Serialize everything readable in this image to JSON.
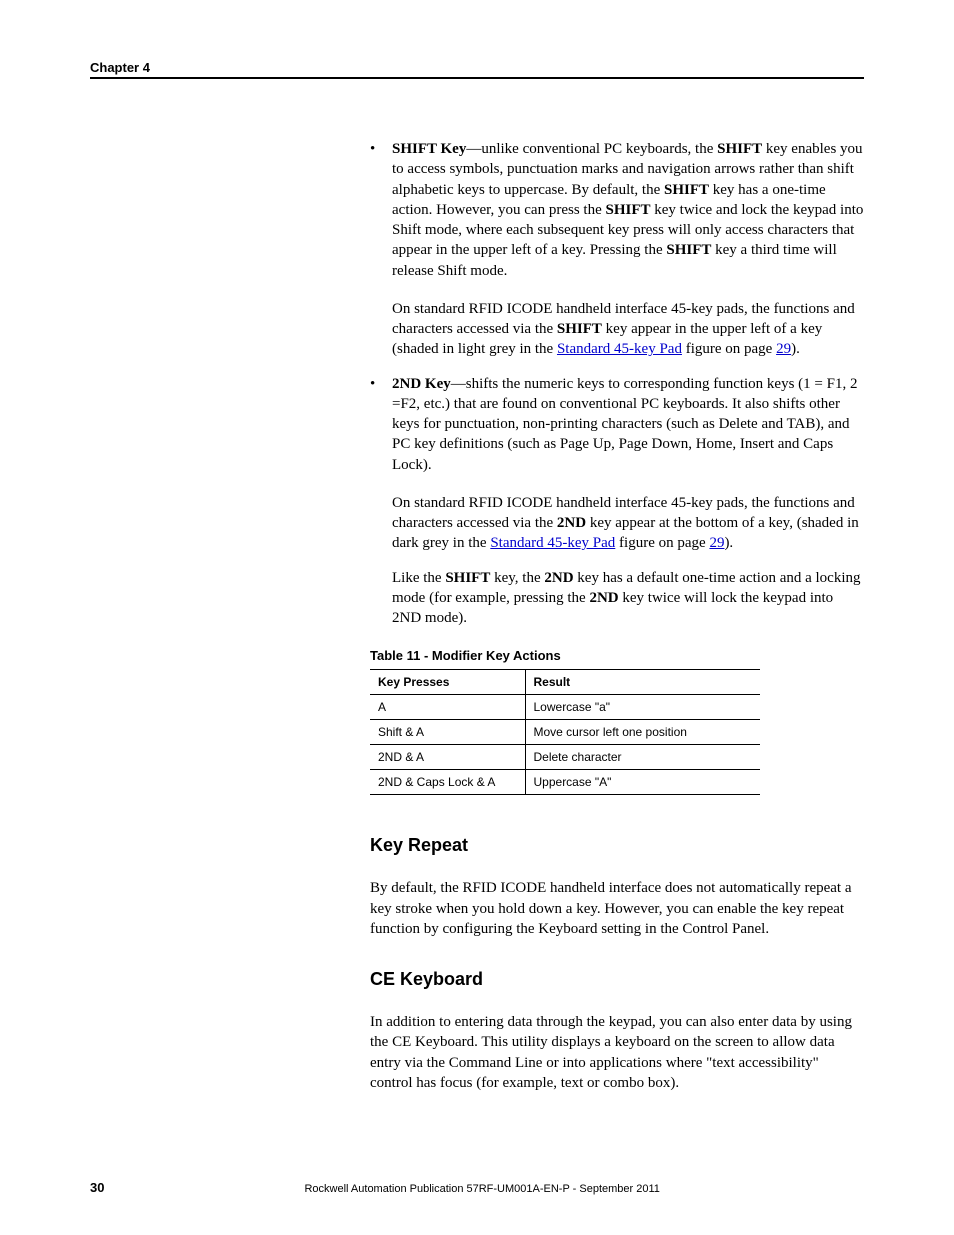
{
  "header": {
    "chapter": "Chapter 4"
  },
  "bullets": [
    {
      "lead_bold": "SHIFT Key",
      "lead_text": "—unlike conventional PC keyboards, the ",
      "b1": "SHIFT",
      "t1": " key enables you to access symbols, punctuation marks and navigation arrows rather than shift alphabetic keys to uppercase. By default, the ",
      "b2": "SHIFT",
      "t2": " key has a one-time action. However, you can press the ",
      "b3": "SHIFT",
      "t3": " key twice and lock the keypad into Shift mode, where each subsequent key press will only access characters that appear in the upper left of a key. Pressing the ",
      "b4": "SHIFT",
      "t4": " key a third time will release Shift mode.",
      "followups": [
        {
          "pre": "On standard RFID ICODE handheld interface 45-key pads, the functions and characters accessed via the ",
          "bold": "SHIFT",
          "mid": " key appear in the upper left of a key (shaded in light grey in the ",
          "link": "Standard 45-key Pad",
          "mid2": " figure on page ",
          "link2": "29",
          "tail": ")."
        }
      ]
    },
    {
      "lead_bold": "2ND Key",
      "lead_text": "—shifts the numeric keys to corresponding function keys (1 = F1, 2 =F2, etc.) that are found on conventional PC keyboards. It also shifts other keys for punctuation, non-printing characters (such as Delete and TAB), and PC key definitions (such as Page Up, Page Down, Home, Insert and Caps Lock).",
      "followups": [
        {
          "pre": "On standard RFID ICODE handheld interface 45-key pads, the functions and characters accessed via the ",
          "bold": "2ND",
          "mid": " key appear at the bottom of a key, (shaded in dark grey in the ",
          "link": "Standard 45-key Pad",
          "mid2": " figure on page ",
          "link2": "29",
          "tail": ")."
        },
        {
          "pre": "Like the ",
          "bold": "SHIFT",
          "mid": " key, the ",
          "bold2": "2ND",
          "mid2b": " key has a default one-time action and a locking mode (for example, pressing the ",
          "bold3": "2ND",
          "tail": " key twice will lock the keypad into 2ND mode)."
        }
      ]
    }
  ],
  "table": {
    "title": "Table 11 - Modifier Key Actions",
    "headers": [
      "Key Presses",
      "Result"
    ],
    "rows": [
      [
        "A",
        "Lowercase \"a\""
      ],
      [
        "Shift & A",
        "Move cursor left one position"
      ],
      [
        "2ND & A",
        "Delete character"
      ],
      [
        "2ND & Caps Lock & A",
        "Uppercase \"A\""
      ]
    ]
  },
  "sections": [
    {
      "heading": "Key Repeat",
      "body": "By default, the RFID ICODE handheld interface does not automatically repeat a key stroke when you hold down a key. However, you can enable the key repeat function by configuring the Keyboard setting in the Control Panel."
    },
    {
      "heading": "CE Keyboard",
      "body": "In addition to entering data through the keypad, you can also enter data by using the CE Keyboard. This utility displays a keyboard on the screen to allow data entry via the Command Line or into applications where \"text accessibility\" control has focus (for example, text or combo box)."
    }
  ],
  "footer": {
    "page": "30",
    "text": "Rockwell Automation Publication 57RF-UM001A-EN-P - September 2011"
  }
}
